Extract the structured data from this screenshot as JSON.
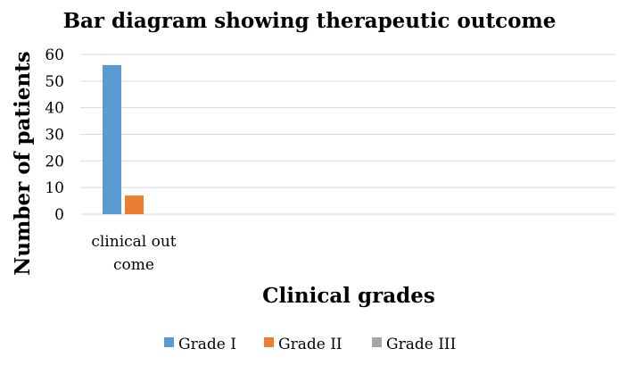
{
  "chart_data": {
    "type": "bar",
    "title": "Bar diagram showing therapeutic outcome",
    "xlabel": "Clinical grades",
    "ylabel": "Number of patients",
    "categories": [
      "clinical out come"
    ],
    "category_lines": [
      [
        "clinical out",
        "come"
      ]
    ],
    "series": [
      {
        "name": "Grade I",
        "color": "#5b9bd5",
        "values": [
          56
        ]
      },
      {
        "name": "Grade II",
        "color": "#ed7d31",
        "values": [
          7
        ]
      },
      {
        "name": "Grade III",
        "color": "#a5a5a5",
        "values": [
          0
        ]
      }
    ],
    "ylim": [
      0,
      60
    ],
    "yticks": [
      0,
      10,
      20,
      30,
      40,
      50,
      60
    ],
    "grid": true,
    "legend_position": "bottom"
  }
}
